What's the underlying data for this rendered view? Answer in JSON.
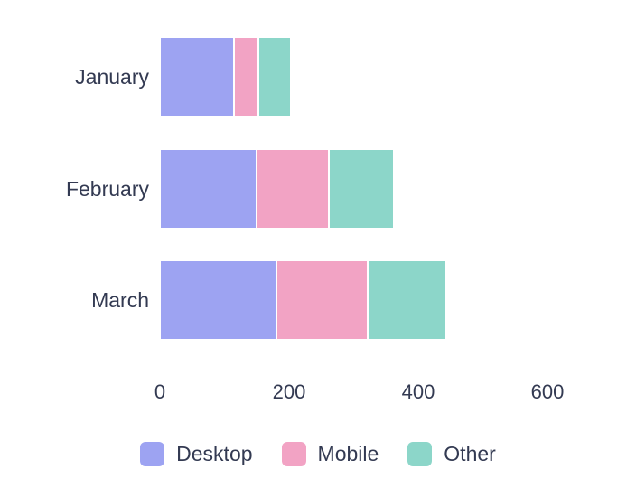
{
  "chart_data": {
    "type": "bar",
    "orientation": "horizontal",
    "stacked": true,
    "title": "",
    "xlabel": "",
    "ylabel": "",
    "categories": [
      "January",
      "February",
      "March"
    ],
    "series": [
      {
        "name": "Desktop",
        "color": "#9da3f2",
        "values": [
          115,
          150,
          181
        ]
      },
      {
        "name": "Mobile",
        "color": "#f2a3c4",
        "values": [
          38,
          112,
          140
        ]
      },
      {
        "name": "Other",
        "color": "#8cd6c9",
        "values": [
          50,
          100,
          122
        ]
      }
    ],
    "xlim": [
      0,
      600
    ],
    "x_ticks": [
      "0",
      "200",
      "400",
      "600"
    ],
    "x_tick_values": [
      0,
      200,
      400,
      600
    ],
    "grid": false,
    "legend_position": "bottom",
    "text_color": "#333a52",
    "segment_border_color": "#ffffff",
    "background": "#ffffff"
  }
}
